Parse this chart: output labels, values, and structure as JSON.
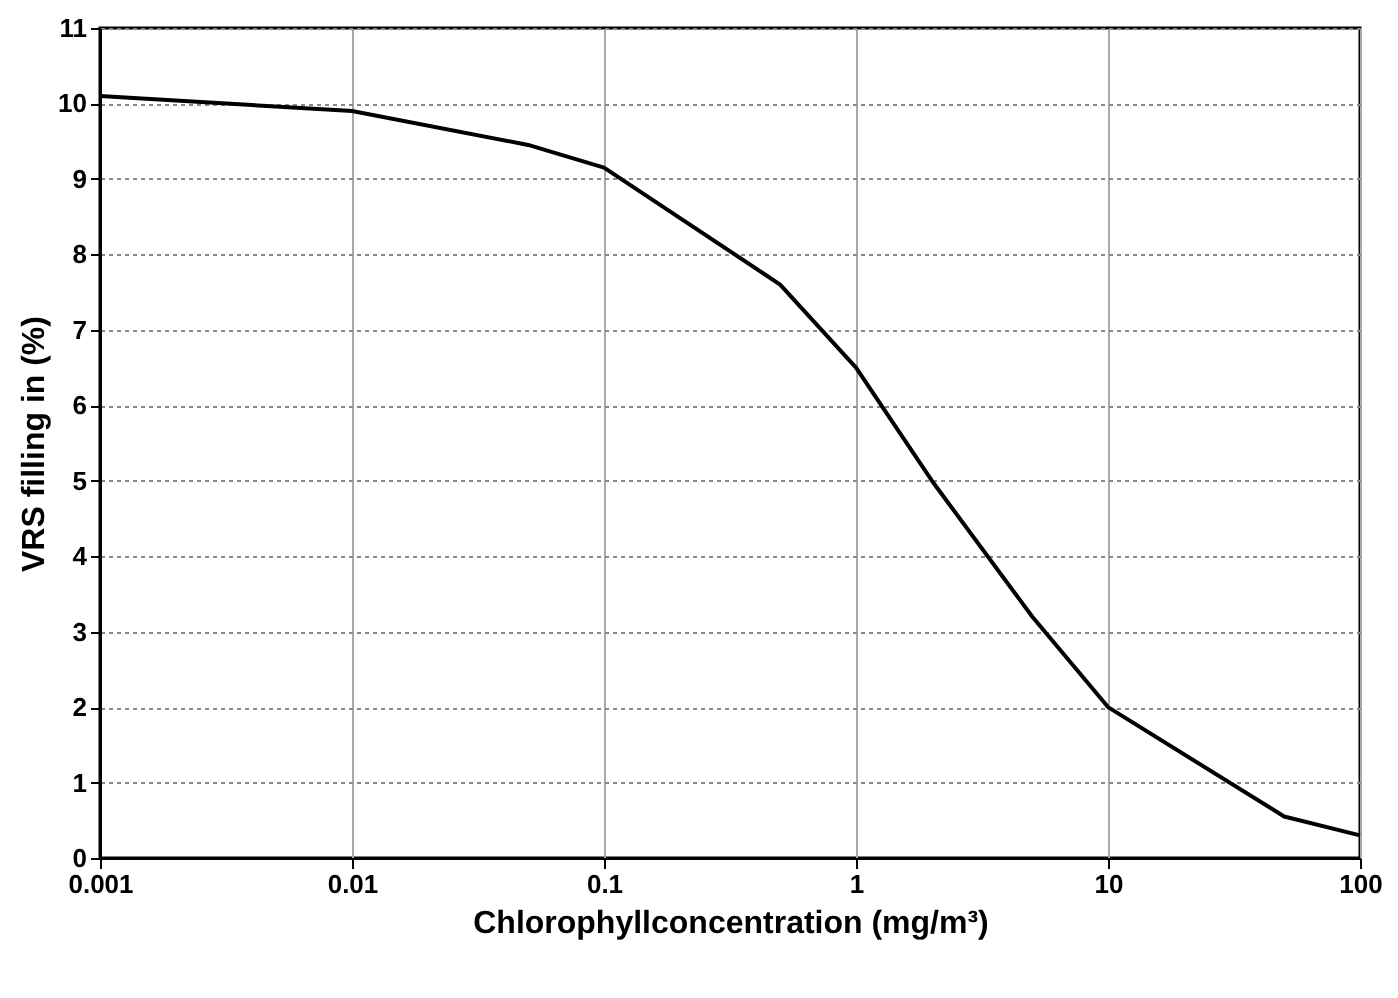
{
  "chart_data": {
    "type": "line",
    "xlabel": "Chlorophyllconcentration (mg/m³)",
    "ylabel": "VRS filling in (%)",
    "log": "x",
    "x": [
      0.001,
      0.01,
      0.05,
      0.1,
      0.5,
      1,
      2,
      5,
      10,
      50,
      100
    ],
    "series": [
      {
        "color": "#000000",
        "values": [
          10.1,
          9.9,
          9.45,
          9.15,
          7.6,
          6.5,
          5.0,
          3.2,
          2.0,
          0.55,
          0.3
        ]
      }
    ],
    "xlim": [
      0.001,
      100
    ],
    "xticks": [
      0.001,
      0.01,
      0.1,
      1,
      10,
      100
    ],
    "ylim": [
      0,
      11
    ],
    "yticks": [
      0,
      1,
      2,
      3,
      4,
      5,
      6,
      7,
      8,
      9,
      10,
      11
    ],
    "grid": true,
    "marker": "none",
    "line_style": "solid"
  }
}
